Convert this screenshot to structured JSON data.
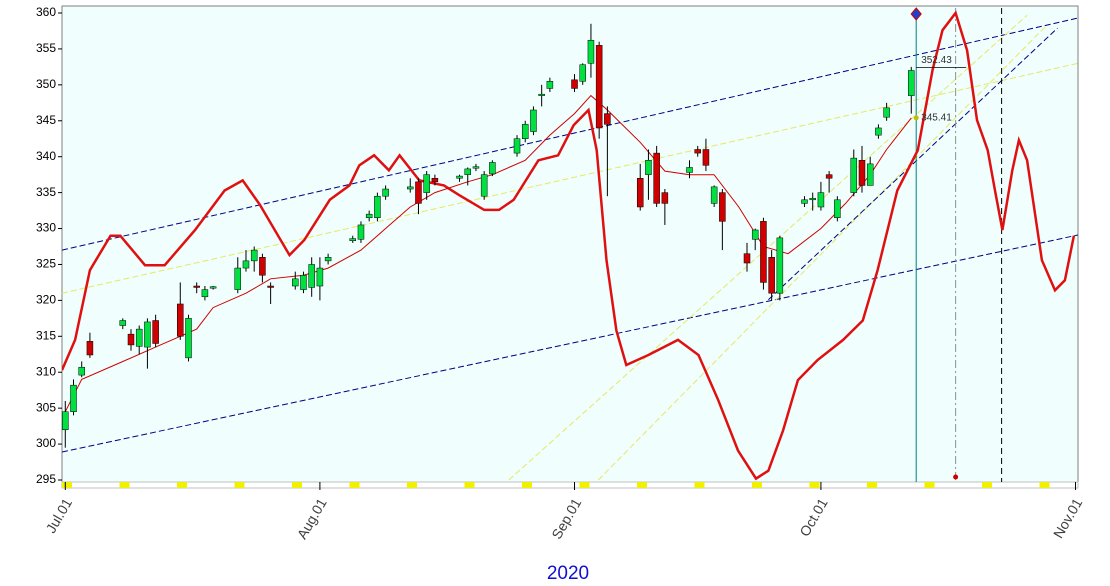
{
  "chart_data": {
    "type": "candlestick",
    "year_label": "2020",
    "xlim": [
      -0.4,
      123.3
    ],
    "xticks": [
      {
        "value": 0,
        "label": "Jul.01"
      },
      {
        "value": 31,
        "label": "Aug.01"
      },
      {
        "value": 62,
        "label": "Sep.01"
      },
      {
        "value": 92,
        "label": "Oct.01"
      },
      {
        "value": 123,
        "label": "Nov.01"
      }
    ],
    "ylim": [
      295,
      360
    ],
    "yticks": [
      295,
      300,
      305,
      310,
      315,
      320,
      325,
      330,
      335,
      340,
      345,
      350,
      355,
      360
    ],
    "candles": {
      "up_color": "#00e040",
      "down_color": "#d00000",
      "x": [
        0,
        1,
        2,
        3,
        7,
        8,
        9,
        10,
        11,
        14,
        15,
        16,
        17,
        18,
        21,
        22,
        23,
        24,
        25,
        28,
        29,
        30,
        31,
        32,
        35,
        36,
        37,
        38,
        39,
        42,
        43,
        44,
        45,
        48,
        49,
        50,
        51,
        52,
        55,
        56,
        57,
        58,
        59,
        62,
        63,
        64,
        65,
        66,
        70,
        71,
        72,
        73,
        76,
        77,
        78,
        79,
        80,
        83,
        84,
        85,
        86,
        87,
        90,
        91,
        92,
        93,
        94,
        96,
        97,
        98,
        99,
        100,
        103
      ],
      "open": [
        302,
        304.5,
        309.6,
        314.3,
        316.5,
        315.3,
        313.6,
        313.5,
        317.2,
        319.5,
        312,
        322,
        320.5,
        321.7,
        321.5,
        324.5,
        325.5,
        326,
        322,
        322,
        321.5,
        321.8,
        322,
        325.5,
        328.3,
        328.5,
        331.5,
        331.5,
        334.5,
        335.5,
        336.5,
        335,
        337,
        337,
        337.5,
        338.4,
        334.5,
        337.6,
        340.5,
        342.5,
        343.5,
        348.5,
        349.5,
        350.7,
        350.5,
        353,
        355.5,
        346,
        337,
        337.5,
        340.5,
        335,
        337.8,
        341,
        341,
        333.5,
        335,
        326.5,
        328.5,
        331,
        326,
        321,
        333.5,
        334,
        333,
        337.5,
        331.5,
        335,
        339.5,
        336,
        343,
        345.5,
        348.5
      ],
      "high": [
        306,
        309,
        311.5,
        315.5,
        317.5,
        316,
        316.5,
        317.5,
        318,
        322.5,
        318,
        322.5,
        322,
        322,
        326,
        327,
        327.5,
        326.5,
        322.5,
        324,
        324,
        326,
        326,
        326.5,
        329,
        331,
        332.5,
        335,
        336,
        337,
        337,
        338,
        337.5,
        337.5,
        338.5,
        339,
        338,
        339.5,
        343,
        345,
        347,
        350,
        351,
        351.5,
        353,
        358.5,
        356,
        347,
        339,
        341,
        341.5,
        335.5,
        339.5,
        341.5,
        342.5,
        336,
        335.5,
        328,
        330,
        331.5,
        327,
        329,
        334.5,
        335,
        336.5,
        338,
        334.5,
        341,
        341.5,
        340,
        344.5,
        347.5,
        352.5
      ],
      "low": [
        299.5,
        304,
        309.3,
        312,
        316,
        313,
        312.5,
        310.5,
        313.5,
        314.5,
        311.5,
        321,
        320,
        321.5,
        321,
        324,
        324,
        322.5,
        319.5,
        321.5,
        321,
        320.5,
        320,
        325,
        328,
        328,
        331,
        331,
        334,
        335,
        332,
        334,
        336,
        336.5,
        336,
        338,
        334,
        337.3,
        340,
        342,
        343,
        347,
        349,
        349,
        350,
        351,
        342.5,
        334.5,
        332.5,
        334,
        333,
        330.5,
        337,
        340,
        338,
        333,
        327,
        324,
        327,
        321.5,
        320,
        320,
        333,
        332.5,
        332.5,
        335,
        331,
        334.5,
        335,
        336,
        342.5,
        345,
        346
      ],
      "close": [
        304.5,
        308.2,
        310.7,
        312.4,
        317.2,
        313.8,
        316,
        317,
        314,
        315,
        317.5,
        321.8,
        321.5,
        321.9,
        324.5,
        325.5,
        327,
        323.5,
        321.8,
        323,
        323.5,
        325,
        324.5,
        326,
        328.6,
        330.5,
        332,
        334.5,
        335.5,
        335.8,
        333.5,
        337.5,
        336.5,
        337.3,
        338.3,
        338.6,
        337.5,
        339.2,
        342.5,
        344.5,
        346.5,
        348.7,
        350.5,
        349.5,
        352.8,
        356.2,
        344,
        344.5,
        333,
        339.5,
        333.5,
        333.5,
        338.5,
        340.5,
        338.8,
        335.8,
        331,
        325.2,
        329.8,
        322.5,
        321,
        328.7,
        334,
        334.2,
        335,
        337,
        334,
        339.8,
        336,
        339,
        344,
        346.8,
        352
      ]
    },
    "moving_average": {
      "color": "#d00000",
      "x": [
        0,
        2,
        7,
        11,
        14,
        16,
        18,
        22,
        25,
        29,
        32,
        36,
        39,
        42,
        45,
        49,
        52,
        56,
        59,
        62,
        64,
        66,
        70,
        73,
        76,
        79,
        82,
        85,
        88,
        92,
        95,
        98,
        100,
        103
      ],
      "values": [
        304.5,
        309,
        311.5,
        313.5,
        315,
        316,
        319,
        321,
        323,
        323.5,
        324.5,
        327,
        330,
        333,
        335,
        336.5,
        337.5,
        339.5,
        343,
        346,
        348.5,
        346.5,
        342,
        338,
        337.5,
        337.5,
        333,
        327.5,
        326.5,
        330,
        333.5,
        337.5,
        341,
        345.4
      ]
    },
    "cycle": {
      "color": "#e01010",
      "x": [
        -0.4,
        1.2,
        3,
        5.5,
        6.7,
        9.7,
        12.1,
        15.8,
        19.4,
        21.6,
        23.7,
        27.3,
        29.1,
        32.2,
        34.6,
        35.8,
        37.6,
        39.4,
        40.7,
        43.1,
        46.1,
        47.9,
        51,
        52.8,
        54.6,
        57.6,
        60,
        61.9,
        63.7,
        64.7,
        65.9,
        67.1,
        68.3,
        71,
        74.6,
        77.1,
        79.5,
        81.9,
        84.1,
        85.6,
        87.4,
        89.2,
        91.6,
        94.7,
        97.1,
        98.9,
        101.3,
        103.8,
        105.6,
        106.8,
        108.4,
        109.8,
        111,
        112.3,
        113.2,
        114.1,
        115.3,
        116.1,
        117.1,
        118.9,
        120.5,
        121.7,
        122.8
      ],
      "values": [
        310.3,
        314.5,
        324.2,
        329,
        329,
        324.9,
        324.9,
        329.8,
        335.3,
        336.7,
        333.3,
        326.3,
        328.4,
        334,
        336,
        338.8,
        340.2,
        338.1,
        340.2,
        336.7,
        336,
        334.7,
        332.6,
        332.6,
        334,
        339.5,
        340.2,
        344.4,
        346.5,
        340.9,
        325.6,
        315.8,
        311,
        312.4,
        314.5,
        312.4,
        306.1,
        299.1,
        295.2,
        296.3,
        301.9,
        308.9,
        311.7,
        314.5,
        317.2,
        324.2,
        335.3,
        340.9,
        352.1,
        357.6,
        360,
        354.8,
        345.1,
        340.9,
        335.3,
        329.8,
        338.1,
        342.3,
        339.5,
        325.6,
        321.4,
        322.8,
        329
      ]
    },
    "trendlines": [
      {
        "color": "#000080",
        "x": [
          -0.4,
          123.3
        ],
        "values": [
          327,
          359.3
        ]
      },
      {
        "color": "#e8e860",
        "x": [
          -0.4,
          123.3
        ],
        "values": [
          321,
          353
        ]
      },
      {
        "color": "#000080",
        "x": [
          -0.4,
          123.3
        ],
        "values": [
          298.9,
          329.1
        ]
      },
      {
        "color": "#e8e860",
        "x": [
          54,
          117.1
        ],
        "values": [
          295,
          359.7
        ]
      },
      {
        "color": "#e8e860",
        "x": [
          64.9,
          119.5
        ],
        "values": [
          295,
          358.3
        ]
      },
      {
        "color": "#000080",
        "x": [
          85.6,
          120.8
        ],
        "values": [
          320.1,
          357.9
        ]
      }
    ],
    "verticals": [
      {
        "x": 103.6,
        "color": "#008080",
        "dash": "none"
      },
      {
        "x": 108.4,
        "color": "#909090",
        "dash": "8 3 2 3"
      },
      {
        "x": 114,
        "color": "#000000",
        "dash": "6 4"
      }
    ],
    "price_labels": [
      {
        "x": 103.6,
        "value": 352.43,
        "label": "352.43"
      },
      {
        "x": 103.6,
        "value": 345.41,
        "label": "345.41"
      }
    ]
  }
}
